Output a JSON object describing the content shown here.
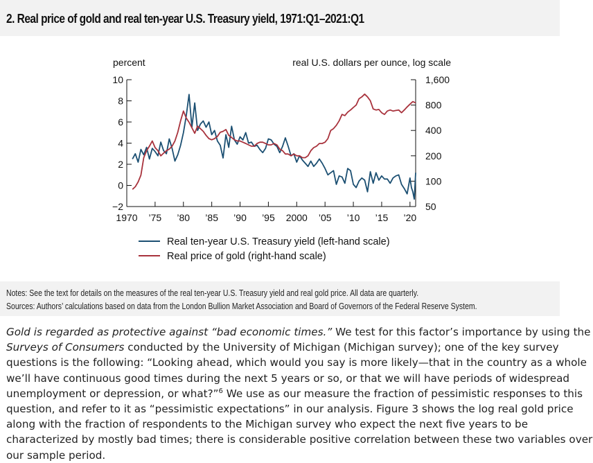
{
  "figure": {
    "title": "2. Real price of gold and real ten-year U.S. Treasury yield, 1971:Q1–2021:Q1",
    "notes": "Notes: See the text for details on the measures of the real ten-year U.S. Treasury yield and real gold price. All data are quarterly.",
    "sources": "Sources: Authors’ calculations based on data from the London Bullion Market Association and Board of Governors of the Federal Reserve System."
  },
  "chart_data": {
    "type": "line",
    "left_axis_label": "percent",
    "right_axis_label": "real U.S. dollars per ounce, log scale",
    "left_ylim": [
      -2,
      10
    ],
    "left_ticks": [
      "10",
      "8",
      "6",
      "4",
      "2",
      "0",
      "−2"
    ],
    "right_ylim": [
      50,
      1600
    ],
    "right_scale": "log",
    "right_ticks": [
      "1,600",
      "800",
      "400",
      "200",
      "100",
      "50"
    ],
    "x_range": [
      1970,
      2021
    ],
    "x_ticks": [
      "1970",
      "’75",
      "’80",
      "’85",
      "’90",
      "’95",
      "2000",
      "’05",
      "’10",
      "’15",
      "’20"
    ],
    "grid": false,
    "legend_position": "bottom",
    "series": [
      {
        "name": "Real ten-year U.S. Treasury yield (left-hand scale)",
        "axis": "left",
        "color": "#1b4f72",
        "x": [
          1971.0,
          1971.5,
          1972.0,
          1972.5,
          1973.0,
          1973.5,
          1974.0,
          1974.5,
          1975.0,
          1975.5,
          1976.0,
          1976.5,
          1977.0,
          1977.5,
          1978.0,
          1978.5,
          1979.0,
          1979.5,
          1980.0,
          1980.5,
          1981.0,
          1981.5,
          1982.0,
          1982.5,
          1983.0,
          1983.5,
          1984.0,
          1984.5,
          1985.0,
          1985.5,
          1986.0,
          1986.5,
          1987.0,
          1987.5,
          1988.0,
          1988.5,
          1989.0,
          1989.5,
          1990.0,
          1990.5,
          1991.0,
          1991.5,
          1992.0,
          1992.5,
          1993.0,
          1993.5,
          1994.0,
          1994.5,
          1995.0,
          1995.5,
          1996.0,
          1996.5,
          1997.0,
          1997.5,
          1998.0,
          1998.5,
          1999.0,
          1999.5,
          2000.0,
          2000.5,
          2001.0,
          2001.5,
          2002.0,
          2002.5,
          2003.0,
          2003.5,
          2004.0,
          2004.5,
          2005.0,
          2005.5,
          2006.0,
          2006.5,
          2007.0,
          2007.5,
          2008.0,
          2008.5,
          2009.0,
          2009.5,
          2010.0,
          2010.5,
          2011.0,
          2011.5,
          2012.0,
          2012.5,
          2013.0,
          2013.5,
          2014.0,
          2014.5,
          2015.0,
          2015.5,
          2016.0,
          2016.5,
          2017.0,
          2017.5,
          2018.0,
          2018.5,
          2019.0,
          2019.5,
          2020.0,
          2020.25,
          2020.5,
          2020.75,
          2021.0
        ],
        "values": [
          2.5,
          3.0,
          2.2,
          3.4,
          2.9,
          3.6,
          2.5,
          3.5,
          3.2,
          2.8,
          4.1,
          3.3,
          3.0,
          4.4,
          3.5,
          2.3,
          2.9,
          3.8,
          5.0,
          6.6,
          8.6,
          5.5,
          7.8,
          5.2,
          5.8,
          6.1,
          5.5,
          6.0,
          4.8,
          5.2,
          4.2,
          3.8,
          2.6,
          4.8,
          3.6,
          5.6,
          4.3,
          3.9,
          4.6,
          4.3,
          5.0,
          4.0,
          4.1,
          3.7,
          3.8,
          3.4,
          3.1,
          3.5,
          4.4,
          4.3,
          3.9,
          3.7,
          3.1,
          3.7,
          4.5,
          3.7,
          2.8,
          3.0,
          2.2,
          2.8,
          2.4,
          2.1,
          1.8,
          2.3,
          1.8,
          2.1,
          2.5,
          2.1,
          1.6,
          1.0,
          1.2,
          1.4,
          0.1,
          0.9,
          0.8,
          0.2,
          1.6,
          1.4,
          0.1,
          -0.2,
          0.4,
          0.7,
          0.5,
          -0.6,
          1.3,
          0.2,
          1.2,
          0.5,
          0.9,
          0.6,
          0.6,
          0.2,
          0.7,
          0.9,
          1.0,
          0.1,
          -0.3,
          -0.8,
          0.7,
          -0.2,
          -0.6,
          -1.3,
          1.2
        ]
      },
      {
        "name": "Real price of gold (right-hand scale)",
        "axis": "right",
        "color": "#a8323c",
        "x": [
          1971.0,
          1971.5,
          1972.0,
          1972.5,
          1973.0,
          1973.5,
          1974.0,
          1974.5,
          1975.0,
          1975.5,
          1976.0,
          1976.5,
          1977.0,
          1977.5,
          1978.0,
          1978.5,
          1979.0,
          1979.5,
          1980.0,
          1980.5,
          1981.0,
          1981.5,
          1982.0,
          1982.5,
          1983.0,
          1983.5,
          1984.0,
          1984.5,
          1985.0,
          1985.5,
          1986.0,
          1986.5,
          1987.0,
          1987.5,
          1988.0,
          1988.5,
          1989.0,
          1989.5,
          1990.0,
          1990.5,
          1991.0,
          1991.5,
          1992.0,
          1992.5,
          1993.0,
          1993.5,
          1994.0,
          1994.5,
          1995.0,
          1995.5,
          1996.0,
          1996.5,
          1997.0,
          1997.5,
          1998.0,
          1998.5,
          1999.0,
          1999.5,
          2000.0,
          2000.5,
          2001.0,
          2001.5,
          2002.0,
          2002.5,
          2003.0,
          2003.5,
          2004.0,
          2004.5,
          2005.0,
          2005.5,
          2006.0,
          2006.5,
          2007.0,
          2007.5,
          2008.0,
          2008.5,
          2009.0,
          2009.5,
          2010.0,
          2010.5,
          2011.0,
          2011.5,
          2012.0,
          2012.5,
          2013.0,
          2013.5,
          2014.0,
          2014.5,
          2015.0,
          2015.5,
          2016.0,
          2016.5,
          2017.0,
          2017.5,
          2018.0,
          2018.5,
          2019.0,
          2019.5,
          2020.0,
          2020.5,
          2021.0
        ],
        "values": [
          80,
          86,
          98,
          118,
          190,
          230,
          260,
          300,
          250,
          230,
          200,
          215,
          230,
          240,
          260,
          300,
          380,
          520,
          680,
          560,
          500,
          430,
          370,
          450,
          420,
          390,
          350,
          320,
          310,
          320,
          340,
          380,
          390,
          410,
          350,
          330,
          310,
          300,
          300,
          290,
          280,
          270,
          260,
          260,
          280,
          290,
          290,
          280,
          270,
          270,
          280,
          270,
          240,
          230,
          210,
          210,
          200,
          210,
          200,
          200,
          190,
          190,
          200,
          230,
          250,
          260,
          280,
          280,
          290,
          320,
          400,
          420,
          460,
          520,
          620,
          600,
          660,
          700,
          750,
          800,
          950,
          1000,
          1080,
          1000,
          900,
          720,
          700,
          710,
          650,
          620,
          680,
          700,
          680,
          690,
          700,
          650,
          700,
          760,
          820,
          880,
          850
        ]
      }
    ]
  },
  "article": {
    "p1_em1": "Gold is regarded as protective against “bad economic times.”",
    "p1_t1": " We test for this factor’s importance by using the ",
    "p1_em2": "Surveys of Consumers",
    "p1_t2": " conducted by the University of Michigan (Michigan survey); one of the key survey questions is the following: “Looking ahead, which would you say is more likely—that in the country as a whole we’ll have continuous good times during the next 5 years or so, or that we will have periods of widespread unemployment or depression, or what?”",
    "p1_sup": "6",
    "p1_t3": " We use as our measure the fraction of pessimistic responses to this question, and refer to it as “pessimistic expectations” in our analysis. Figure 3 shows the log real gold price along with the fraction of respondents to the Michigan survey who expect the next five years to be characterized by mostly bad times; there is considerable positive correlation between these two variables over our sample period."
  }
}
